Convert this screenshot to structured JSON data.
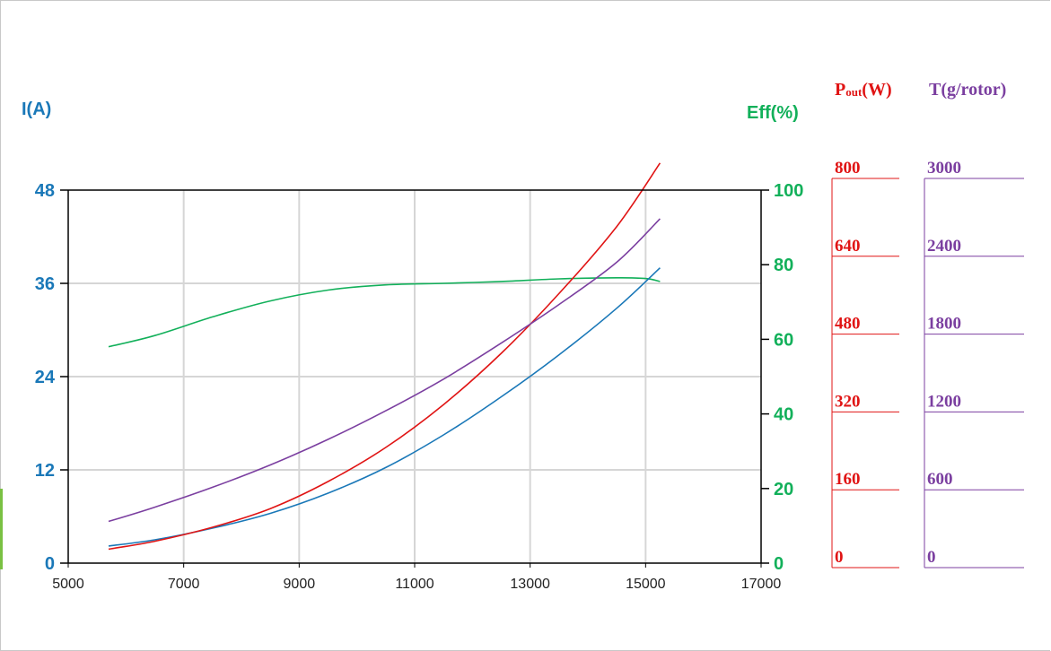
{
  "chart_data": {
    "type": "line",
    "x_axis": {
      "range": [
        5000,
        17000
      ],
      "ticks": [
        5000,
        7000,
        9000,
        11000,
        13000,
        15000,
        17000
      ]
    },
    "axes": {
      "current": {
        "label": "I(A)",
        "range": [
          0,
          48
        ],
        "ticks": [
          0,
          12,
          24,
          36,
          48
        ],
        "color": "#1a78b8"
      },
      "efficiency": {
        "label": "Eff(%)",
        "range": [
          0,
          100
        ],
        "ticks": [
          0,
          20,
          40,
          60,
          80,
          100
        ],
        "color": "#12b05a"
      },
      "power": {
        "label_main": "P",
        "label_sub": "out",
        "label_tail": "(W)",
        "range": [
          0,
          800
        ],
        "ticks": [
          0,
          160,
          320,
          480,
          640,
          800
        ],
        "color": "#e01414"
      },
      "thrust": {
        "label": "T(g/rotor)",
        "range": [
          0,
          3000
        ],
        "ticks": [
          0,
          600,
          1200,
          1800,
          2400,
          3000
        ],
        "color": "#7b3fa0"
      }
    },
    "grid": true,
    "series": [
      {
        "axis": "efficiency",
        "color": "#12b05a",
        "x": [
          5700,
          6500,
          7500,
          8500,
          9500,
          10500,
          11500,
          12500,
          13500,
          14500,
          15000,
          15250
        ],
        "y": [
          58,
          61,
          66,
          70.3,
          73.2,
          74.6,
          75.0,
          75.5,
          76.2,
          76.5,
          76.3,
          75.5
        ]
      },
      {
        "axis": "current",
        "color": "#1a78b8",
        "x": [
          5700,
          6500,
          7500,
          8500,
          9500,
          10500,
          11500,
          12500,
          13500,
          14500,
          15250
        ],
        "y": [
          2.2,
          3.0,
          4.5,
          6.4,
          9.0,
          12.3,
          16.5,
          21.4,
          26.8,
          32.8,
          38.0
        ]
      },
      {
        "axis": "power",
        "color": "#e01414",
        "x": [
          5700,
          6500,
          7500,
          8500,
          9500,
          10500,
          11500,
          12500,
          13500,
          14500,
          15250
        ],
        "y": [
          30,
          47,
          77,
          117,
          175,
          248,
          340,
          450,
          578,
          722,
          858
        ]
      },
      {
        "axis": "thrust",
        "color": "#7b3fa0",
        "x": [
          5700,
          6500,
          7500,
          8500,
          9500,
          10500,
          11500,
          12500,
          13500,
          14500,
          15250
        ],
        "y": [
          335,
          450,
          610,
          790,
          995,
          1225,
          1480,
          1770,
          2080,
          2420,
          2770
        ]
      }
    ]
  }
}
